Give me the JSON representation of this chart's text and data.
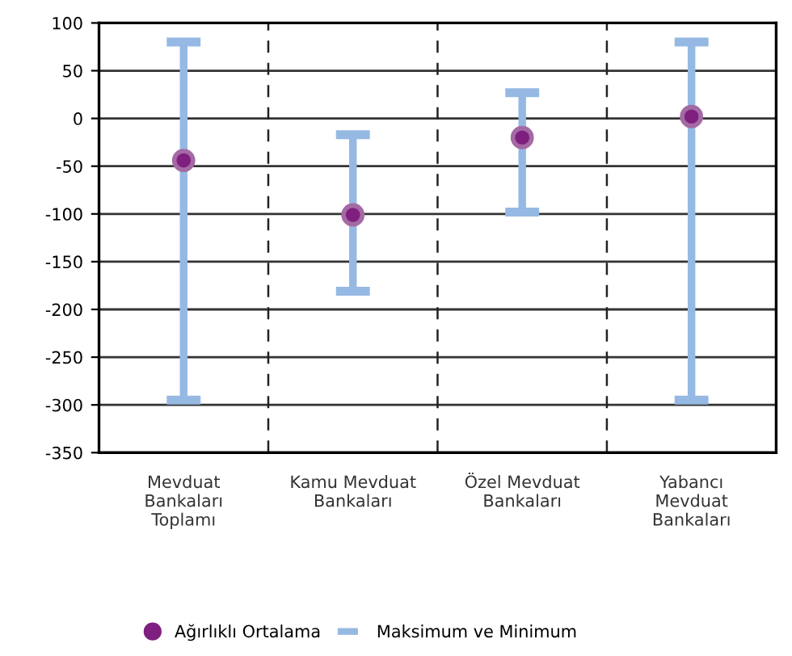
{
  "chart_data": {
    "type": "bar",
    "categories": [
      "Mevduat\nBankaları\nToplamı",
      "Kamu Mevduat\nBankaları",
      "Özel Mevduat\nBankaları",
      "Yabancı\nMevduat\nBankaları"
    ],
    "series": [
      {
        "name": "Ağırlıklı Ortalama",
        "type": "scatter",
        "color": "#7f1f7f",
        "values": [
          -44,
          -101,
          -20,
          2
        ]
      },
      {
        "name": "Maksimum ve Minimum",
        "color": "#95b9e3",
        "base": [
          -295,
          -181,
          -98,
          -295
        ],
        "values": [
          375,
          164,
          125,
          375
        ]
      }
    ],
    "ylim": [
      -350,
      100
    ],
    "yticks": [
      -350,
      -300,
      -250,
      -200,
      -150,
      -100,
      -50,
      0,
      50,
      100
    ],
    "grid": true,
    "legend": "bottom",
    "marker": "circle"
  }
}
